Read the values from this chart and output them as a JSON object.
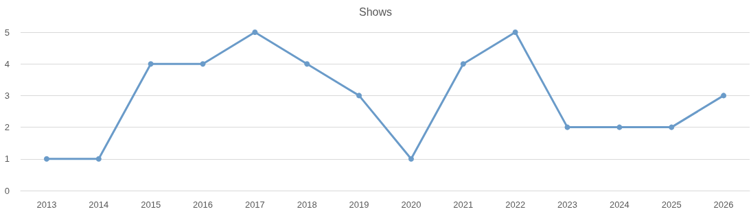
{
  "chart_data": {
    "type": "line",
    "title": "Shows",
    "categories": [
      "2013",
      "2014",
      "2015",
      "2016",
      "2017",
      "2018",
      "2019",
      "2020",
      "2021",
      "2022",
      "2023",
      "2024",
      "2025",
      "2026"
    ],
    "series": [
      {
        "color": "#6a9bc9",
        "values": [
          1,
          1,
          4,
          4,
          5,
          4,
          3,
          1,
          4,
          5,
          2,
          2,
          2,
          3
        ]
      }
    ],
    "ylim": [
      0,
      5
    ],
    "yticks": [
      0,
      1,
      2,
      3,
      4,
      5
    ],
    "grid": "y",
    "marker": "circle",
    "line_style": "solid"
  }
}
